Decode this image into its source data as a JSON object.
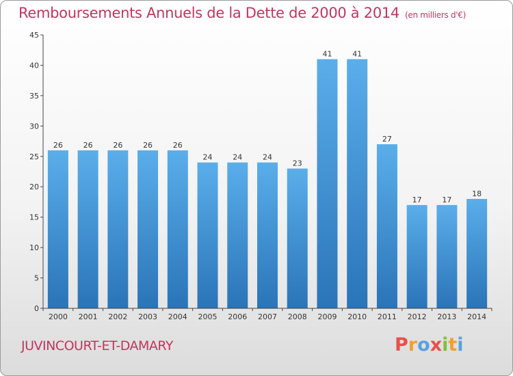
{
  "title": "Remboursements Annuels de la Dette de 2000 à 2014",
  "unit": "(en milliers d'€)",
  "commune": "JUVINCOURT-ET-DAMARY",
  "brand": {
    "letters": [
      "P",
      "r",
      "o",
      "x",
      "i",
      "t",
      "i"
    ],
    "colors": [
      "#e8504a",
      "#f0a030",
      "#5aa0e0",
      "#e8504a",
      "#80c040",
      "#f0a030",
      "#5aa0e0"
    ]
  },
  "colors": {
    "bar_top": "#5aaeea",
    "bar_bottom": "#2a74b8",
    "title": "#c0365e"
  },
  "chart_data": {
    "type": "bar",
    "categories": [
      "2000",
      "2001",
      "2002",
      "2003",
      "2004",
      "2005",
      "2006",
      "2007",
      "2008",
      "2009",
      "2010",
      "2011",
      "2012",
      "2013",
      "2014"
    ],
    "values": [
      26,
      26,
      26,
      26,
      26,
      24,
      24,
      24,
      23,
      41,
      41,
      27,
      17,
      17,
      18
    ],
    "title": "Remboursements Annuels de la Dette de 2000 à 2014",
    "ylim": [
      0,
      45
    ],
    "yticks": [
      0,
      5,
      10,
      15,
      20,
      25,
      30,
      35,
      40,
      45
    ],
    "grid": false,
    "legend": "none"
  }
}
